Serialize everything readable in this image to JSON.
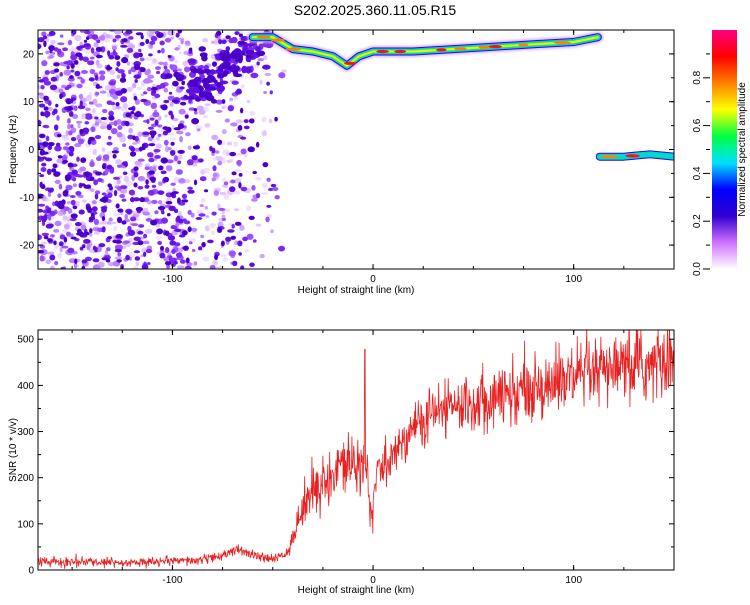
{
  "figure_title": "S202.2025.360.11.05.R15",
  "chart_data": [
    {
      "type": "heatmap",
      "xlabel": "Height of straight line (km)",
      "ylabel": "Frequency (Hz)",
      "xlim": [
        -167,
        150
      ],
      "ylim": [
        -25,
        25
      ],
      "xticks": [
        -100,
        0,
        100
      ],
      "yticks": [
        -20,
        -10,
        0,
        10,
        20
      ],
      "colorbar": {
        "label": "Normalized spectral amplitude",
        "range": [
          0,
          1
        ],
        "ticks": [
          0.0,
          0.2,
          0.4,
          0.6,
          0.8
        ],
        "colors": [
          "#ffffff",
          "#d070ff",
          "#3000d0",
          "#0000ff",
          "#00e0ff",
          "#00ff40",
          "#ffff00",
          "#ff8000",
          "#ff0000",
          "#ff0080"
        ]
      },
      "features": [
        {
          "region": "noise field",
          "x_range": [
            -167,
            -45
          ],
          "y_range": [
            -25,
            25
          ],
          "amplitude": 0.15
        },
        {
          "region": "upper ridge",
          "points": [
            [
              -60,
              23.5
            ],
            [
              -50,
              23.5
            ],
            [
              -40,
              21
            ],
            [
              -30,
              20.5
            ],
            [
              -20,
              19.5
            ],
            [
              -13,
              17.5
            ],
            [
              -7,
              19.5
            ],
            [
              0,
              20.5
            ],
            [
              20,
              20.5
            ],
            [
              40,
              21
            ],
            [
              60,
              21.5
            ],
            [
              80,
              22
            ],
            [
              100,
              22.5
            ],
            [
              112,
              23.5
            ]
          ],
          "amplitude": 0.75
        },
        {
          "region": "lower ridge",
          "points": [
            [
              113,
              -1.5
            ],
            [
              125,
              -1.5
            ],
            [
              138,
              -1
            ],
            [
              150,
              -1.5
            ]
          ],
          "amplitude": 0.55
        }
      ]
    },
    {
      "type": "line",
      "xlabel": "Height of straight line (km)",
      "ylabel": "SNR (10 * v/v)",
      "xlim": [
        -167,
        150
      ],
      "ylim": [
        0,
        520
      ],
      "xticks": [
        -100,
        0,
        100
      ],
      "yticks": [
        0,
        100,
        200,
        300,
        400,
        500
      ],
      "color": "#e82020",
      "trend": {
        "x": [
          -167,
          -140,
          -110,
          -90,
          -75,
          -68,
          -60,
          -50,
          -42,
          -35,
          -28,
          -20,
          -12,
          -6,
          -3,
          -1,
          2,
          10,
          20,
          30,
          45,
          60,
          80,
          100,
          120,
          140,
          150
        ],
        "y": [
          18,
          17,
          17,
          20,
          30,
          45,
          32,
          22,
          40,
          140,
          185,
          200,
          230,
          250,
          200,
          110,
          210,
          250,
          310,
          340,
          360,
          375,
          395,
          415,
          430,
          445,
          455
        ]
      },
      "spike": {
        "x": -4,
        "y": 478
      }
    }
  ]
}
